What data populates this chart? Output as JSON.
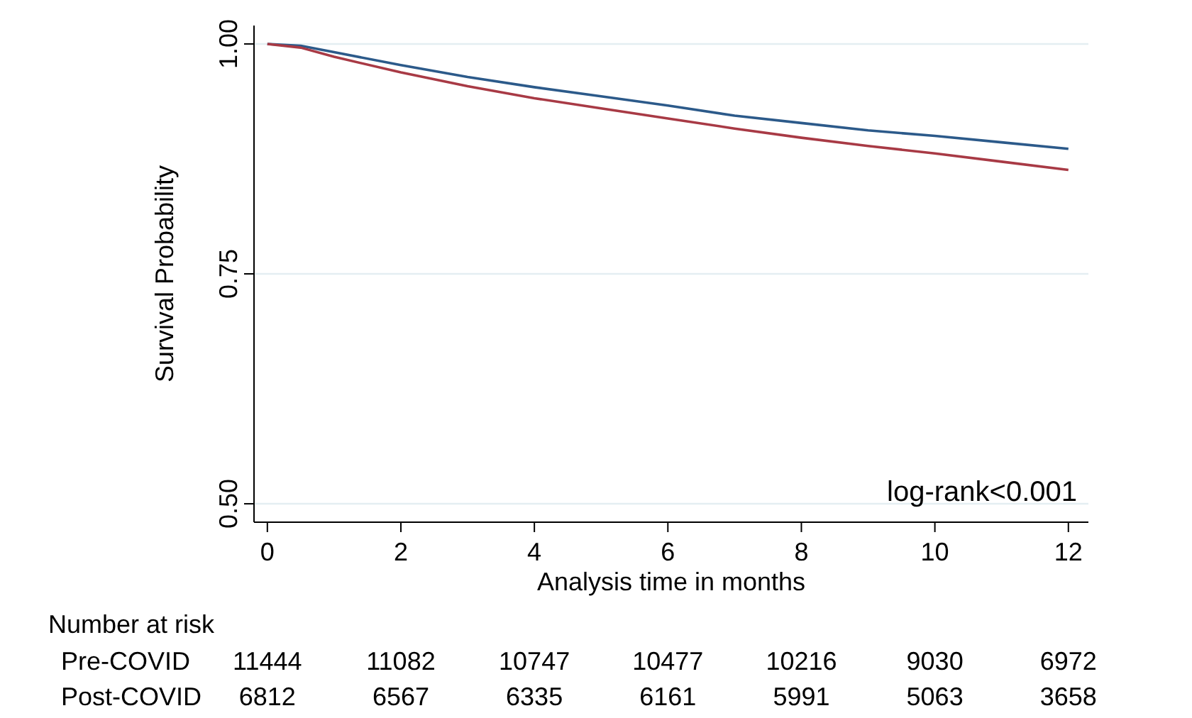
{
  "chart_data": {
    "type": "line",
    "ylabel": "Survival Probability",
    "xlabel": "Analysis time in months",
    "x": [
      0,
      0.5,
      1,
      2,
      3,
      4,
      5,
      6,
      7,
      8,
      9,
      10,
      11,
      12
    ],
    "series": [
      {
        "color": "#2c5a8a",
        "values": [
          1.0,
          0.998,
          0.991,
          0.977,
          0.964,
          0.953,
          0.943,
          0.933,
          0.922,
          0.914,
          0.906,
          0.9,
          0.893,
          0.886
        ]
      },
      {
        "color": "#a83a45",
        "values": [
          1.0,
          0.996,
          0.986,
          0.969,
          0.954,
          0.941,
          0.93,
          0.919,
          0.908,
          0.898,
          0.889,
          0.881,
          0.872,
          0.863
        ]
      }
    ],
    "xlim": [
      -0.2,
      12.3
    ],
    "ylim": [
      0.48,
      1.02
    ],
    "xticks": [
      0,
      2,
      4,
      6,
      8,
      10,
      12
    ],
    "yticks": [
      {
        "value": 0.5,
        "label": "0.50"
      },
      {
        "value": 0.75,
        "label": "0.75"
      },
      {
        "value": 1,
        "label": "1.00"
      }
    ],
    "grid": "y",
    "marker": "none",
    "line_style": "solid",
    "annotations": [
      "log-rank<0.001",
      "Number at risk",
      "Pre-COVID",
      "Post-COVID",
      "11444",
      "11082",
      "10747",
      "10477",
      "10216",
      "9030",
      "6972",
      "6812",
      "6567",
      "6335",
      "6161",
      "5991",
      "5063",
      "3658"
    ]
  }
}
